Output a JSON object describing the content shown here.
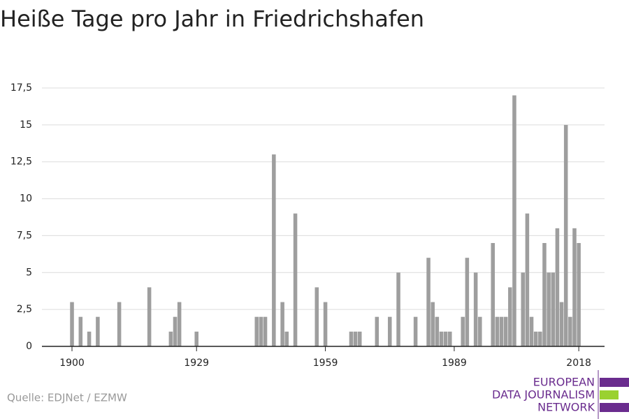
{
  "chart_data": {
    "type": "bar",
    "title": "Heiße Tage pro Jahr in Friedrichshafen",
    "source": "Quelle: EDJNet / EZMW",
    "logo": [
      "EUROPEAN",
      "DATA JOURNALISM",
      "NETWORK"
    ],
    "color": "#9e9e9e",
    "x": [
      1900,
      1902,
      1904,
      1906,
      1911,
      1918,
      1923,
      1924,
      1925,
      1929,
      1943,
      1944,
      1945,
      1947,
      1949,
      1950,
      1952,
      1957,
      1959,
      1965,
      1966,
      1967,
      1971,
      1974,
      1976,
      1980,
      1983,
      1984,
      1985,
      1986,
      1987,
      1988,
      1991,
      1992,
      1994,
      1995,
      1998,
      1999,
      2000,
      2001,
      2002,
      2003,
      2005,
      2006,
      2007,
      2008,
      2009,
      2010,
      2011,
      2012,
      2013,
      2014,
      2015,
      2016,
      2017,
      2018
    ],
    "values": [
      3,
      2,
      1,
      2,
      3,
      4,
      1,
      2,
      3,
      1,
      2,
      2,
      2,
      13,
      3,
      1,
      9,
      4,
      3,
      1,
      1,
      1,
      2,
      2,
      5,
      2,
      6,
      3,
      2,
      1,
      1,
      1,
      2,
      6,
      5,
      2,
      7,
      2,
      2,
      2,
      4,
      17,
      5,
      9,
      2,
      1,
      1,
      7,
      5,
      5,
      8,
      3,
      15,
      2,
      8,
      7
    ],
    "xlim": [
      1893,
      2024
    ],
    "xticks": [
      1900,
      1929,
      1959,
      1989,
      2018
    ],
    "ylim": [
      0,
      17.5
    ],
    "yticks": [
      0,
      {
        "value": 2.5,
        "label": "2,5"
      },
      5,
      {
        "value": 7.5,
        "label": "7,5"
      },
      10,
      {
        "value": 12.5,
        "label": "12,5"
      },
      15,
      {
        "value": 17.5,
        "label": "17,5"
      }
    ],
    "grid": true
  }
}
